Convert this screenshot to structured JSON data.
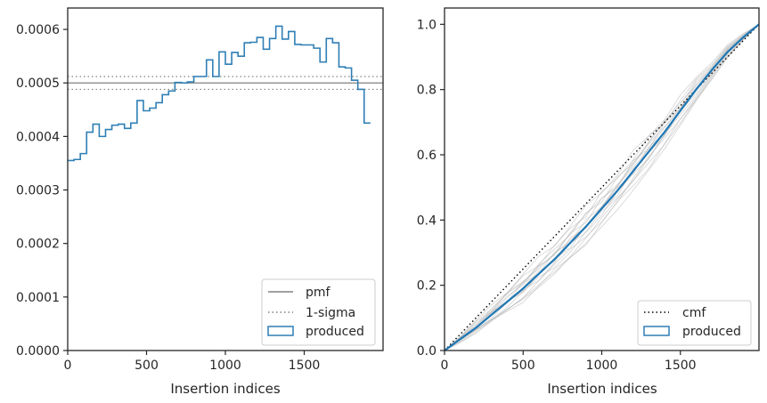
{
  "chart_data": [
    {
      "type": "step-histogram",
      "xlabel": "Insertion indices",
      "xlim": [
        0,
        2000
      ],
      "ylim": [
        0,
        0.00064
      ],
      "xticks": [
        0,
        500,
        1000,
        1500
      ],
      "yticks": [
        0.0,
        0.0001,
        0.0002,
        0.0003,
        0.0004,
        0.0005,
        0.0006
      ],
      "ytick_labels": [
        "0.0000",
        "0.0001",
        "0.0002",
        "0.0003",
        "0.0004",
        "0.0005",
        "0.0006"
      ],
      "bin_width": 40,
      "pmf": 0.0005,
      "sigma_band": [
        0.000488,
        0.000512
      ],
      "produced": [
        0.000355,
        0.000357,
        0.000368,
        0.000408,
        0.000423,
        0.0004,
        0.000413,
        0.000421,
        0.000423,
        0.000415,
        0.000425,
        0.000467,
        0.000448,
        0.000453,
        0.000463,
        0.000478,
        0.000485,
        0.000501,
        0.0005,
        0.000502,
        0.000512,
        0.000512,
        0.000543,
        0.000512,
        0.000558,
        0.000535,
        0.000557,
        0.00055,
        0.000575,
        0.000576,
        0.000585,
        0.000563,
        0.000583,
        0.000606,
        0.000582,
        0.000596,
        0.000572,
        0.000571,
        0.000571,
        0.000565,
        0.000539,
        0.000583,
        0.000575,
        0.00053,
        0.000528,
        0.000505,
        0.000488,
        0.000425
      ],
      "legend_loc": "lower right",
      "legend": [
        {
          "label": "pmf",
          "style": "solid",
          "color": "#808080"
        },
        {
          "label": "1-sigma",
          "style": "dotted",
          "color": "#808080"
        },
        {
          "label": "produced",
          "style": "patch",
          "color": "#2f7fb5"
        }
      ]
    },
    {
      "type": "line",
      "xlabel": "Insertion indices",
      "xlim": [
        0,
        2000
      ],
      "ylim": [
        0,
        1.05
      ],
      "xticks": [
        0,
        500,
        1000,
        1500
      ],
      "yticks": [
        0.0,
        0.2,
        0.4,
        0.6,
        0.8,
        1.0
      ],
      "ytick_labels": [
        "0.0",
        "0.2",
        "0.4",
        "0.6",
        "0.8",
        "1.0"
      ],
      "cmf": {
        "x": [
          0,
          2000
        ],
        "y": [
          0,
          1
        ]
      },
      "produced": {
        "x": [
          0,
          100,
          200,
          300,
          400,
          500,
          600,
          700,
          800,
          900,
          1000,
          1100,
          1200,
          1300,
          1400,
          1500,
          1600,
          1700,
          1800,
          1900,
          2000
        ],
        "y": [
          0,
          0.035,
          0.07,
          0.11,
          0.15,
          0.19,
          0.235,
          0.28,
          0.33,
          0.38,
          0.435,
          0.49,
          0.55,
          0.61,
          0.67,
          0.735,
          0.8,
          0.86,
          0.915,
          0.96,
          1.0
        ]
      },
      "bootstrap_offsets": [
        -0.05,
        -0.038,
        -0.028,
        -0.02,
        -0.012,
        -0.004,
        0.004,
        0.012,
        0.022,
        0.032,
        0.042,
        0.055,
        -0.045,
        0.028,
        0.015
      ],
      "legend_loc": "lower right",
      "legend": [
        {
          "label": "cmf",
          "style": "dotted",
          "color": "#000000"
        },
        {
          "label": "produced",
          "style": "patch",
          "color": "#2f7fb5"
        }
      ]
    }
  ]
}
